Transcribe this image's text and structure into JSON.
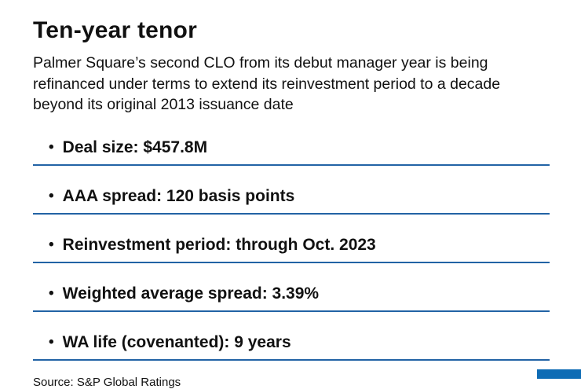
{
  "title": "Ten-year tenor",
  "subtitle": "Palmer Square’s second CLO from its debut manager year is being refinanced under terms to extend its reinvestment period to a decade beyond its original 2013 issuance date",
  "bullet": "•",
  "items": [
    "Deal size: $457.8M",
    "AAA spread: 120 basis points",
    "Reinvestment period: through Oct. 2023",
    "Weighted average spread: 3.39%",
    "WA life (covenanted): 9 years"
  ],
  "source": "Source: S&P Global Ratings",
  "colors": {
    "rule": "#2263a5",
    "accent": "#0e6cb5",
    "text": "#1a1a1a"
  }
}
